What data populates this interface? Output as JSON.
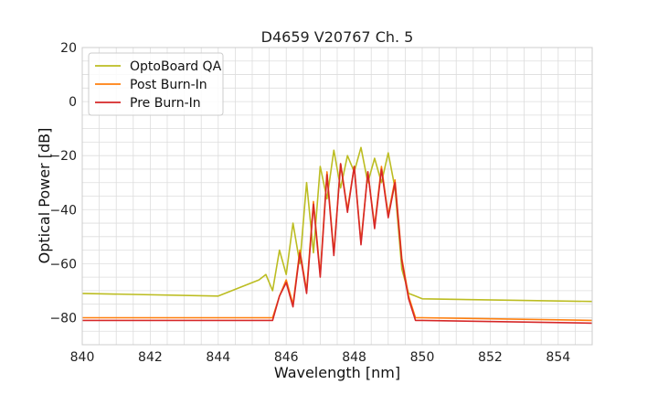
{
  "chart_data": {
    "type": "line",
    "title": "D4659 V20767 Ch. 5",
    "xlabel": "Wavelength [nm]",
    "ylabel": "Optical Power [dB]",
    "xlim": [
      840,
      855
    ],
    "ylim": [
      -90,
      20
    ],
    "xticks": [
      840,
      842,
      844,
      846,
      848,
      850,
      852,
      854
    ],
    "yticks": [
      20,
      0,
      -20,
      -40,
      -60,
      -80
    ],
    "xtick_labels": [
      "840",
      "842",
      "844",
      "846",
      "848",
      "850",
      "852",
      "854"
    ],
    "ytick_labels": [
      "20",
      "0",
      "−20",
      "−40",
      "−60",
      "−80"
    ],
    "grid": true,
    "legend": {
      "position": "top-left"
    },
    "series": [
      {
        "name": "OptoBoard QA",
        "color": "#bcbd22",
        "x": [
          840.0,
          844.0,
          845.2,
          845.4,
          845.6,
          845.8,
          846.0,
          846.2,
          846.4,
          846.6,
          846.8,
          847.0,
          847.2,
          847.4,
          847.6,
          847.8,
          848.0,
          848.2,
          848.4,
          848.6,
          848.8,
          849.0,
          849.2,
          849.4,
          849.6,
          849.8,
          850.0,
          855.0
        ],
        "values": [
          -71,
          -72,
          -66,
          -64,
          -70,
          -55,
          -64,
          -45,
          -60,
          -30,
          -56,
          -24,
          -36,
          -18,
          -32,
          -20,
          -26,
          -17,
          -30,
          -21,
          -30,
          -19,
          -32,
          -62,
          -71,
          -72,
          -73,
          -74
        ]
      },
      {
        "name": "Post Burn-In",
        "color": "#ff7f0e",
        "x": [
          840.0,
          845.6,
          845.8,
          846.0,
          846.2,
          846.4,
          846.6,
          846.8,
          847.0,
          847.2,
          847.4,
          847.6,
          847.8,
          848.0,
          848.2,
          848.4,
          848.6,
          848.8,
          849.0,
          849.2,
          849.4,
          849.6,
          849.8,
          850.0,
          855.0
        ],
        "values": [
          -80,
          -80,
          -72,
          -66,
          -75,
          -55,
          -70,
          -37,
          -64,
          -26,
          -56,
          -23,
          -40,
          -24,
          -52,
          -26,
          -46,
          -24,
          -42,
          -29,
          -58,
          -72,
          -80,
          -80,
          -81
        ]
      },
      {
        "name": "Pre Burn-In",
        "color": "#d62728",
        "x": [
          840.0,
          845.6,
          845.8,
          846.0,
          846.2,
          846.4,
          846.6,
          846.8,
          847.0,
          847.2,
          847.4,
          847.6,
          847.8,
          848.0,
          848.2,
          848.4,
          848.6,
          848.8,
          849.0,
          849.2,
          849.4,
          849.6,
          849.8,
          850.0,
          855.0
        ],
        "values": [
          -81,
          -81,
          -72,
          -67,
          -76,
          -56,
          -71,
          -38,
          -65,
          -27,
          -57,
          -23,
          -41,
          -24,
          -53,
          -26,
          -47,
          -25,
          -43,
          -30,
          -59,
          -73,
          -81,
          -81,
          -82
        ]
      }
    ]
  }
}
